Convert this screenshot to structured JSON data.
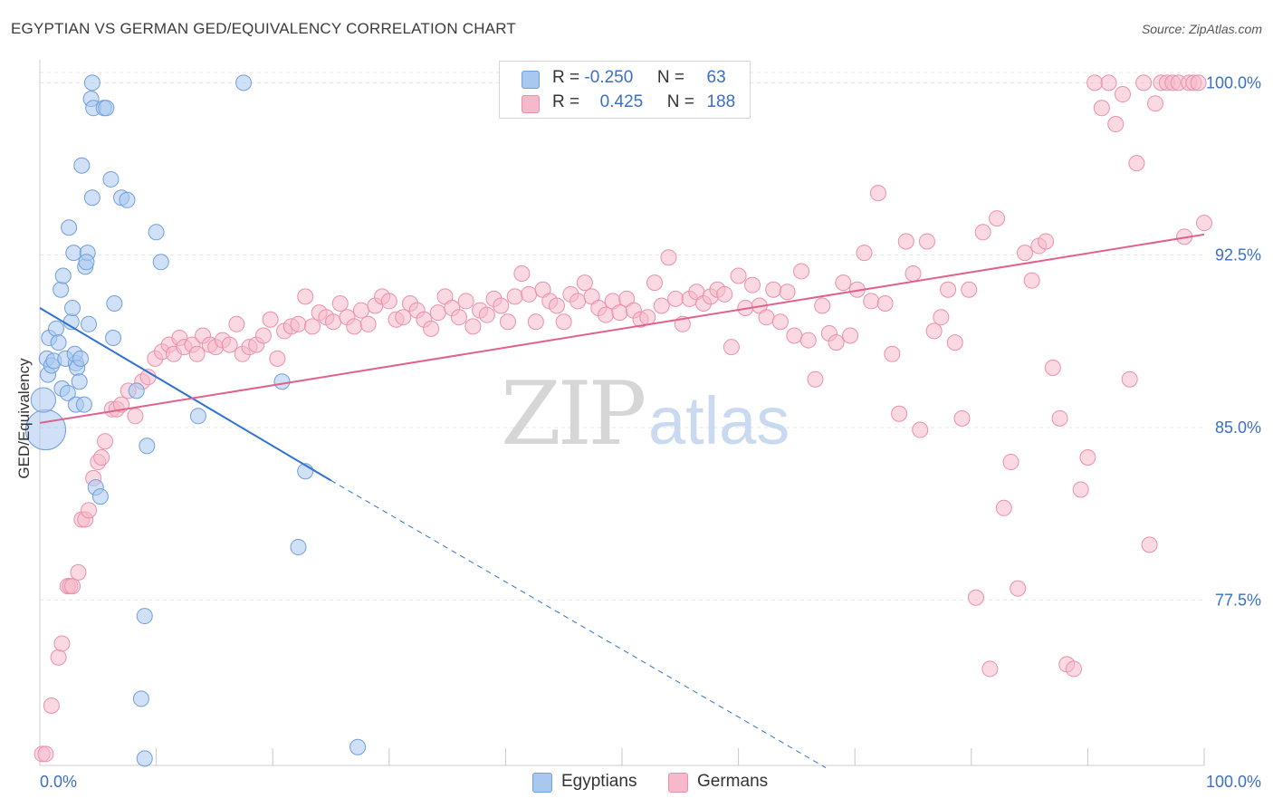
{
  "header": {
    "title": "EGYPTIAN VS GERMAN GED/EQUIVALENCY CORRELATION CHART",
    "source": "Source: ZipAtlas.com"
  },
  "legend": {
    "rows": [
      {
        "r_label": "R =",
        "r_value": "-0.250",
        "n_label": "N =",
        "n_value": "63"
      },
      {
        "r_label": "R =",
        "r_value": "0.425",
        "n_label": "N =",
        "n_value": "188"
      }
    ],
    "bottom": [
      "Egyptians",
      "Germans"
    ]
  },
  "watermark": {
    "zip": "ZIP",
    "atlas": "atlas"
  },
  "colors": {
    "egyptians_fill": "#a9c8f0",
    "egyptians_stroke": "#6f9fdc",
    "egyptians_line": "#2f72cf",
    "germans_fill": "#f6b9cb",
    "germans_stroke": "#ec8fab",
    "germans_line": "#e0628a",
    "axis_label": "#3a6fc4",
    "grid": "#e3e3e3"
  },
  "chart_data": {
    "type": "scatter",
    "title": "EGYPTIAN VS GERMAN GED/EQUIVALENCY CORRELATION CHART",
    "xlabel": "",
    "ylabel": "GED/Equivalency",
    "x_tick_labels": [
      "0.0%",
      "100.0%"
    ],
    "y_tick_labels": [
      "77.5%",
      "85.0%",
      "92.5%",
      "100.0%"
    ],
    "y_ticks": [
      77.5,
      85.0,
      92.5,
      100.0
    ],
    "xlim": [
      0,
      100
    ],
    "ylim": [
      70.3,
      101
    ],
    "grid": "horizontal dashed",
    "legend_placement": "top-center",
    "series": [
      {
        "name": "Egyptians",
        "r": -0.25,
        "n": 63,
        "trend": {
          "x0": 0,
          "y0": 90.2,
          "x1": 25,
          "y1": 82.7,
          "dashed_to_x": 67.5,
          "dashed_to_y": 70.2
        },
        "points": [
          [
            0.5,
            84.9,
            2.6
          ],
          [
            0.3,
            86.2,
            1.6
          ],
          [
            0.6,
            88.0,
            1
          ],
          [
            0.7,
            87.3,
            1
          ],
          [
            0.8,
            88.9,
            1
          ],
          [
            1.0,
            87.7,
            1
          ],
          [
            1.2,
            87.9,
            1
          ],
          [
            1.4,
            89.3,
            1
          ],
          [
            1.6,
            88.7,
            1
          ],
          [
            1.8,
            91.0,
            1
          ],
          [
            2.0,
            91.6,
            1
          ],
          [
            1.9,
            86.7,
            1
          ],
          [
            2.2,
            88.0,
            1
          ],
          [
            2.4,
            86.5,
            1
          ],
          [
            2.5,
            93.7,
            1
          ],
          [
            2.7,
            89.6,
            1
          ],
          [
            2.8,
            90.2,
            1
          ],
          [
            2.9,
            92.6,
            1
          ],
          [
            3.1,
            87.8,
            1
          ],
          [
            3.0,
            88.2,
            1
          ],
          [
            3.1,
            86.0,
            1
          ],
          [
            3.2,
            87.6,
            1
          ],
          [
            3.4,
            87.0,
            1
          ],
          [
            3.5,
            88.0,
            1
          ],
          [
            3.6,
            96.4,
            1
          ],
          [
            3.8,
            86.0,
            1
          ],
          [
            3.9,
            92.0,
            1
          ],
          [
            4.1,
            92.6,
            1
          ],
          [
            4.0,
            92.2,
            1
          ],
          [
            4.2,
            89.5,
            1
          ],
          [
            4.5,
            95.0,
            1
          ],
          [
            4.4,
            99.3,
            1
          ],
          [
            4.6,
            98.9,
            1
          ],
          [
            4.5,
            100.0,
            1
          ],
          [
            4.8,
            82.4,
            1
          ],
          [
            5.2,
            82.0,
            1
          ],
          [
            5.5,
            98.9,
            1
          ],
          [
            5.7,
            98.9,
            1
          ],
          [
            6.1,
            95.8,
            1
          ],
          [
            6.3,
            88.9,
            1
          ],
          [
            6.4,
            90.4,
            1
          ],
          [
            7.0,
            95.0,
            1
          ],
          [
            7.5,
            94.9,
            1
          ],
          [
            8.3,
            86.6,
            1
          ],
          [
            8.7,
            73.2,
            1
          ],
          [
            9.0,
            76.8,
            1
          ],
          [
            9.0,
            70.6,
            1
          ],
          [
            9.2,
            84.2,
            1
          ],
          [
            10.0,
            93.5,
            1
          ],
          [
            10.4,
            92.2,
            1
          ],
          [
            13.6,
            85.5,
            1
          ],
          [
            17.5,
            100.0,
            1
          ],
          [
            20.8,
            87.0,
            1
          ],
          [
            22.2,
            79.8,
            1
          ],
          [
            22.8,
            83.1,
            1
          ],
          [
            27.3,
            71.1,
            1
          ]
        ]
      },
      {
        "name": "Germans",
        "r": 0.425,
        "n": 188,
        "trend": {
          "x0": 0,
          "y0": 85.2,
          "x1": 100,
          "y1": 93.4
        },
        "points": [
          [
            0.2,
            70.8,
            1
          ],
          [
            0.5,
            70.8,
            1
          ],
          [
            1.0,
            72.9,
            1
          ],
          [
            1.6,
            75.0,
            1
          ],
          [
            1.9,
            75.6,
            1
          ],
          [
            2.4,
            78.1,
            1
          ],
          [
            2.6,
            78.1,
            1
          ],
          [
            2.8,
            78.1,
            1
          ],
          [
            3.3,
            78.7,
            1
          ],
          [
            3.6,
            81.0,
            1
          ],
          [
            3.9,
            81.0,
            1
          ],
          [
            4.2,
            81.4,
            1
          ],
          [
            4.6,
            82.8,
            1
          ],
          [
            5.0,
            83.5,
            1
          ],
          [
            5.3,
            83.7,
            1
          ],
          [
            5.6,
            84.4,
            1
          ],
          [
            6.2,
            85.8,
            1
          ],
          [
            6.6,
            85.8,
            1
          ],
          [
            7.0,
            86.0,
            1
          ],
          [
            7.6,
            86.6,
            1
          ],
          [
            8.2,
            85.5,
            1
          ],
          [
            8.8,
            87.0,
            1
          ],
          [
            9.3,
            87.2,
            1
          ],
          [
            9.9,
            88.0,
            1
          ],
          [
            10.5,
            88.3,
            1
          ],
          [
            11.1,
            88.6,
            1
          ],
          [
            11.5,
            88.2,
            1
          ],
          [
            12.0,
            88.9,
            1
          ],
          [
            12.4,
            88.5,
            1
          ],
          [
            13.1,
            88.6,
            1
          ],
          [
            13.5,
            88.2,
            1
          ],
          [
            14.0,
            89.0,
            1
          ],
          [
            14.6,
            88.6,
            1
          ],
          [
            15.1,
            88.5,
            1
          ],
          [
            15.7,
            88.8,
            1
          ],
          [
            16.3,
            88.6,
            1
          ],
          [
            16.9,
            89.5,
            1
          ],
          [
            17.4,
            88.2,
            1
          ],
          [
            18.0,
            88.5,
            1
          ],
          [
            18.6,
            88.6,
            1
          ],
          [
            19.2,
            89.0,
            1
          ],
          [
            19.8,
            89.7,
            1
          ],
          [
            20.4,
            88.0,
            1
          ],
          [
            21.0,
            89.2,
            1
          ],
          [
            21.6,
            89.4,
            1
          ],
          [
            22.2,
            89.5,
            1
          ],
          [
            22.8,
            90.7,
            1
          ],
          [
            23.4,
            89.4,
            1
          ],
          [
            24.0,
            90.0,
            1
          ],
          [
            24.6,
            89.8,
            1
          ],
          [
            25.2,
            89.6,
            1
          ],
          [
            25.8,
            90.4,
            1
          ],
          [
            26.4,
            89.8,
            1
          ],
          [
            27.0,
            89.4,
            1
          ],
          [
            27.6,
            90.1,
            1
          ],
          [
            28.2,
            89.5,
            1
          ],
          [
            28.8,
            90.3,
            1
          ],
          [
            29.4,
            90.7,
            1
          ],
          [
            30.0,
            90.5,
            1
          ],
          [
            30.6,
            89.7,
            1
          ],
          [
            31.2,
            89.8,
            1
          ],
          [
            31.8,
            90.4,
            1
          ],
          [
            32.4,
            90.1,
            1
          ],
          [
            33.0,
            89.7,
            1
          ],
          [
            33.6,
            89.3,
            1
          ],
          [
            34.2,
            90.0,
            1
          ],
          [
            34.8,
            90.7,
            1
          ],
          [
            35.4,
            90.2,
            1
          ],
          [
            36.0,
            89.8,
            1
          ],
          [
            36.6,
            90.5,
            1
          ],
          [
            37.2,
            89.4,
            1
          ],
          [
            37.8,
            90.1,
            1
          ],
          [
            38.4,
            89.9,
            1
          ],
          [
            39.0,
            90.6,
            1
          ],
          [
            39.6,
            90.3,
            1
          ],
          [
            40.2,
            89.6,
            1
          ],
          [
            40.8,
            90.7,
            1
          ],
          [
            41.4,
            91.7,
            1
          ],
          [
            42.0,
            90.8,
            1
          ],
          [
            42.6,
            89.6,
            1
          ],
          [
            43.2,
            91.0,
            1
          ],
          [
            43.8,
            90.5,
            1
          ],
          [
            44.4,
            90.3,
            1
          ],
          [
            45.0,
            89.6,
            1
          ],
          [
            45.6,
            90.8,
            1
          ],
          [
            46.2,
            90.5,
            1
          ],
          [
            46.8,
            91.3,
            1
          ],
          [
            47.4,
            90.7,
            1
          ],
          [
            48.0,
            90.2,
            1
          ],
          [
            48.6,
            89.9,
            1
          ],
          [
            49.2,
            90.5,
            1
          ],
          [
            49.8,
            90.0,
            1
          ],
          [
            50.4,
            90.6,
            1
          ],
          [
            51.0,
            90.1,
            1
          ],
          [
            51.6,
            89.7,
            1
          ],
          [
            52.2,
            89.8,
            1
          ],
          [
            52.8,
            91.3,
            1
          ],
          [
            53.4,
            90.3,
            1
          ],
          [
            54.0,
            92.4,
            1
          ],
          [
            54.6,
            90.6,
            1
          ],
          [
            55.2,
            89.5,
            1
          ],
          [
            55.8,
            90.6,
            1
          ],
          [
            56.4,
            90.9,
            1
          ],
          [
            57.0,
            90.4,
            1
          ],
          [
            57.6,
            90.7,
            1
          ],
          [
            58.2,
            91.0,
            1
          ],
          [
            58.8,
            90.8,
            1
          ],
          [
            59.4,
            88.5,
            1
          ],
          [
            60.0,
            91.6,
            1
          ],
          [
            60.6,
            90.2,
            1
          ],
          [
            61.2,
            91.2,
            1
          ],
          [
            61.8,
            90.3,
            1
          ],
          [
            62.4,
            89.8,
            1
          ],
          [
            63.0,
            91.0,
            1
          ],
          [
            63.6,
            89.6,
            1
          ],
          [
            64.2,
            90.9,
            1
          ],
          [
            64.8,
            89.0,
            1
          ],
          [
            65.4,
            91.8,
            1
          ],
          [
            66.0,
            88.8,
            1
          ],
          [
            66.6,
            87.1,
            1
          ],
          [
            67.2,
            90.3,
            1
          ],
          [
            67.8,
            89.1,
            1
          ],
          [
            68.4,
            88.7,
            1
          ],
          [
            69.0,
            91.3,
            1
          ],
          [
            69.6,
            89.0,
            1
          ],
          [
            70.2,
            91.0,
            1
          ],
          [
            70.8,
            92.6,
            1
          ],
          [
            71.4,
            90.5,
            1
          ],
          [
            72.0,
            95.2,
            1
          ],
          [
            72.6,
            90.4,
            1
          ],
          [
            73.2,
            88.2,
            1
          ],
          [
            73.8,
            85.6,
            1
          ],
          [
            74.4,
            93.1,
            1
          ],
          [
            75.0,
            91.7,
            1
          ],
          [
            75.6,
            84.9,
            1
          ],
          [
            76.2,
            93.1,
            1
          ],
          [
            76.8,
            89.2,
            1
          ],
          [
            77.4,
            89.8,
            1
          ],
          [
            78.0,
            91.0,
            1
          ],
          [
            78.6,
            88.7,
            1
          ],
          [
            79.2,
            85.4,
            1
          ],
          [
            79.8,
            91.0,
            1
          ],
          [
            80.4,
            77.6,
            1
          ],
          [
            81.0,
            93.5,
            1
          ],
          [
            81.6,
            74.5,
            1
          ],
          [
            82.2,
            94.1,
            1
          ],
          [
            82.8,
            81.5,
            1
          ],
          [
            83.4,
            83.5,
            1
          ],
          [
            84.0,
            78.0,
            1
          ],
          [
            84.6,
            92.6,
            1
          ],
          [
            85.2,
            91.4,
            1
          ],
          [
            85.8,
            92.9,
            1
          ],
          [
            86.4,
            93.1,
            1
          ],
          [
            87.0,
            87.6,
            1
          ],
          [
            87.6,
            85.4,
            1
          ],
          [
            88.2,
            74.7,
            1
          ],
          [
            88.8,
            74.5,
            1
          ],
          [
            89.4,
            82.3,
            1
          ],
          [
            90.0,
            83.7,
            1
          ],
          [
            90.6,
            100.0,
            1
          ],
          [
            91.2,
            98.9,
            1
          ],
          [
            91.8,
            100.0,
            1
          ],
          [
            92.4,
            98.2,
            1
          ],
          [
            93.0,
            99.5,
            1
          ],
          [
            93.6,
            87.1,
            1
          ],
          [
            94.2,
            96.5,
            1
          ],
          [
            94.8,
            100.0,
            1
          ],
          [
            95.3,
            79.9,
            1
          ],
          [
            95.8,
            99.1,
            1
          ],
          [
            96.3,
            100.0,
            1
          ],
          [
            96.8,
            100.0,
            1
          ],
          [
            97.3,
            100.0,
            1
          ],
          [
            97.8,
            100.0,
            1
          ],
          [
            98.3,
            93.3,
            1
          ],
          [
            98.7,
            100.0,
            1
          ],
          [
            99.1,
            100.0,
            1
          ],
          [
            99.5,
            100.0,
            1
          ],
          [
            100.0,
            93.9,
            1
          ]
        ]
      }
    ]
  }
}
